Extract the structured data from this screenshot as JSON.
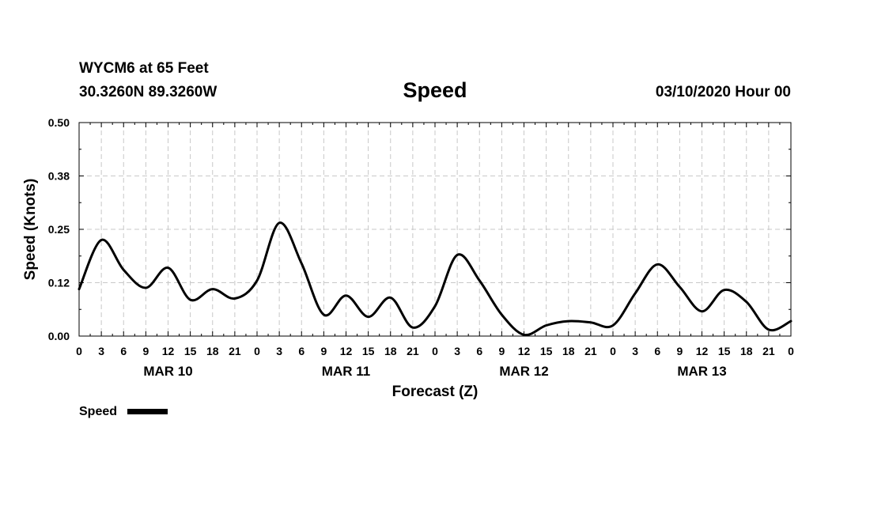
{
  "header": {
    "station": "WYCM6 at 65 Feet",
    "latlon": "30.3260N 89.3260W",
    "title": "Speed",
    "datetime": "03/10/2020 Hour 00"
  },
  "chart_data": {
    "type": "line",
    "title": "Speed",
    "xlabel": "Forecast (Z)",
    "ylabel": "Speed (Knots)",
    "ylim": [
      0,
      0.5
    ],
    "y_ticks": [
      "0.00",
      "0.12",
      "0.25",
      "0.38",
      "0.50"
    ],
    "x_range_hours": [
      0,
      96
    ],
    "x_tick_labels": [
      "0",
      "3",
      "6",
      "9",
      "12",
      "15",
      "18",
      "21",
      "0",
      "3",
      "6",
      "9",
      "12",
      "15",
      "18",
      "21",
      "0",
      "3",
      "6",
      "9",
      "12",
      "15",
      "18",
      "21",
      "0",
      "3",
      "6",
      "9",
      "12",
      "15",
      "18",
      "21",
      "0"
    ],
    "day_labels": [
      "MAR 10",
      "MAR 11",
      "MAR 12",
      "MAR 13"
    ],
    "grid": true,
    "legend": "bottom-left",
    "series": [
      {
        "name": "Speed",
        "hours": [
          0,
          3,
          6,
          9,
          12,
          15,
          18,
          21,
          24,
          27,
          30,
          33,
          36,
          39,
          42,
          45,
          48,
          51,
          54,
          57,
          60,
          63,
          66,
          69,
          72,
          75,
          78,
          81,
          84,
          87,
          90,
          93,
          96
        ],
        "values": [
          0.11,
          0.225,
          0.155,
          0.113,
          0.16,
          0.085,
          0.11,
          0.088,
          0.13,
          0.265,
          0.17,
          0.05,
          0.095,
          0.045,
          0.09,
          0.02,
          0.07,
          0.19,
          0.13,
          0.05,
          0.003,
          0.025,
          0.035,
          0.032,
          0.025,
          0.1,
          0.168,
          0.115,
          0.058,
          0.108,
          0.08,
          0.015,
          0.035
        ]
      }
    ]
  }
}
